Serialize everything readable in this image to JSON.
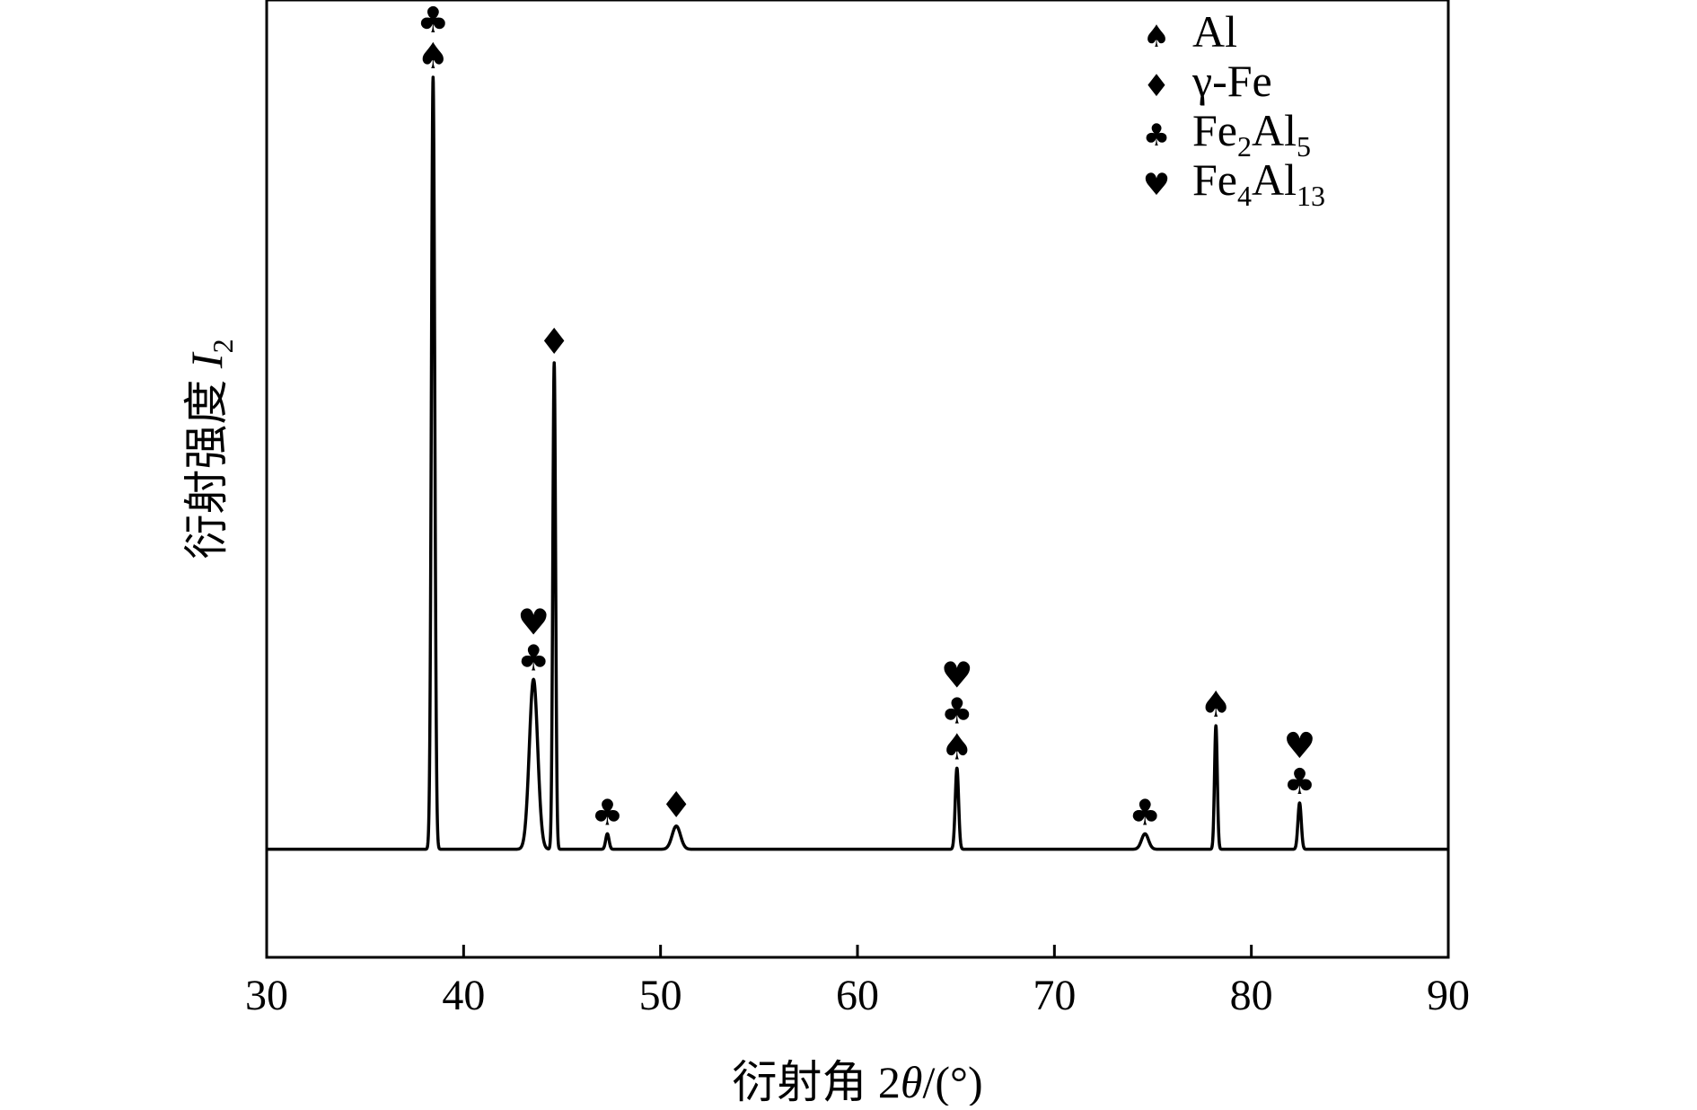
{
  "chart_data": {
    "type": "line",
    "title": "",
    "xlabel_prefix": "衍射角 2",
    "xlabel_symbol": "θ",
    "xlabel_suffix": "/(°)",
    "ylabel_text": "衍射强度 ",
    "ylabel_symbol": "I",
    "ylabel_subscript": "2",
    "xlim": [
      30,
      90
    ],
    "ylim": [
      -0.14,
      1.1
    ],
    "x_ticks": [
      30,
      40,
      50,
      60,
      70,
      80,
      90
    ],
    "x_tick_labels": [
      "30",
      "40",
      "50",
      "60",
      "70",
      "80",
      "90"
    ],
    "y_ticks_shown": false,
    "grid": false,
    "legend_position": "top-right",
    "baseline": 0,
    "legend": [
      {
        "symbol": "♠",
        "phase": "Al",
        "text": "Al",
        "sub1": "",
        "text2": "",
        "sub2": ""
      },
      {
        "symbol": "♦",
        "phase": "γ-Fe",
        "text": "γ-Fe",
        "sub1": "",
        "text2": "",
        "sub2": ""
      },
      {
        "symbol": "♣",
        "phase": "Fe2Al5",
        "text": "Fe",
        "sub1": "2",
        "text2": "Al",
        "sub2": "5"
      },
      {
        "symbol": "♥",
        "phase": "Fe4Al13",
        "text": "Fe",
        "sub1": "4",
        "text2": "Al",
        "sub2": "13"
      }
    ],
    "series": [
      {
        "type": "line",
        "peaks": [
          {
            "x": 38.45,
            "y": 1.0,
            "width": 0.12,
            "markers": [
              "♠",
              "♣"
            ]
          },
          {
            "x": 43.55,
            "y": 0.22,
            "width": 0.3,
            "markers": [
              "♣",
              "♥"
            ]
          },
          {
            "x": 44.6,
            "y": 0.63,
            "width": 0.1,
            "markers": [
              "♦"
            ]
          },
          {
            "x": 47.3,
            "y": 0.02,
            "width": 0.12,
            "markers": [
              "♣"
            ]
          },
          {
            "x": 50.8,
            "y": 0.03,
            "width": 0.3,
            "markers": [
              "♦"
            ]
          },
          {
            "x": 65.05,
            "y": 0.105,
            "width": 0.12,
            "markers": [
              "♠",
              "♣",
              "♥"
            ]
          },
          {
            "x": 74.6,
            "y": 0.02,
            "width": 0.25,
            "markers": [
              "♣"
            ]
          },
          {
            "x": 78.2,
            "y": 0.16,
            "width": 0.1,
            "markers": [
              "♠"
            ]
          },
          {
            "x": 82.45,
            "y": 0.06,
            "width": 0.12,
            "markers": [
              "♣",
              "♥"
            ]
          }
        ]
      }
    ]
  }
}
